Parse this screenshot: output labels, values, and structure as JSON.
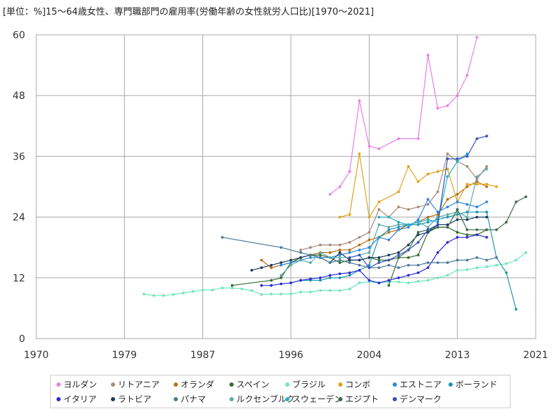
{
  "chart_data": {
    "type": "line",
    "title": "[単位：%]15～64歳女性、専門職部門の雇用率(労働年齢の女性就労人口比)[1970～2021]",
    "xlabel": "",
    "ylabel": "",
    "xlim": [
      1970,
      2021
    ],
    "ylim": [
      0,
      60
    ],
    "xticks": [
      1970,
      1979,
      1987,
      1996,
      2004,
      2013,
      2021
    ],
    "yticks": [
      0,
      12,
      24,
      36,
      48,
      60
    ],
    "grid": true,
    "legend_position": "bottom",
    "series": [
      {
        "name": "ヨルダン",
        "color": "#e87de8",
        "x": [
          2000,
          2001,
          2002,
          2003,
          2004,
          2005,
          2007,
          2009,
          2010,
          2011,
          2012,
          2013,
          2014,
          2015
        ],
        "y": [
          28.5,
          30.0,
          33.0,
          47.0,
          38.0,
          37.5,
          39.5,
          39.5,
          56.0,
          45.5,
          46.0,
          48.0,
          52.0,
          59.5
        ]
      },
      {
        "name": "リトアニア",
        "color": "#a68a7a",
        "x": [
          1997,
          1998,
          1999,
          2000,
          2001,
          2002,
          2003,
          2004,
          2005,
          2006,
          2007,
          2008,
          2009,
          2010,
          2011,
          2012,
          2013,
          2014,
          2015,
          2016
        ],
        "y": [
          17.5,
          18.0,
          18.5,
          18.5,
          18.5,
          19.0,
          20.0,
          21.0,
          25.5,
          24.0,
          26.0,
          25.5,
          26.0,
          26.5,
          29.0,
          36.5,
          35.0,
          34.0,
          31.5,
          34.0
        ]
      },
      {
        "name": "オランダ",
        "color": "#b86e14",
        "x": [
          1993,
          1994,
          1996,
          1997,
          1998,
          1999,
          2000,
          2001,
          2002,
          2003,
          2004,
          2005,
          2006,
          2007,
          2008,
          2009,
          2010,
          2011,
          2012,
          2013,
          2014,
          2015,
          2016
        ],
        "y": [
          15.5,
          14.0,
          15.0,
          16.0,
          16.5,
          17.0,
          17.0,
          17.5,
          17.5,
          18.5,
          19.5,
          20.0,
          21.0,
          21.5,
          22.5,
          23.0,
          24.0,
          24.5,
          27.5,
          28.5,
          30.0,
          31.0,
          30.0
        ]
      },
      {
        "name": "スペイン",
        "color": "#2e6b2e",
        "x": [
          1990,
          1994,
          1995,
          1996,
          1997,
          1998,
          1999,
          2000,
          2001,
          2002,
          2003,
          2004,
          2005,
          2006,
          2007,
          2008,
          2009,
          2010,
          2011,
          2012,
          2013,
          2014,
          2015,
          2016
        ],
        "y": [
          10.5,
          11.5,
          12.0,
          15.0,
          16.0,
          16.5,
          16.5,
          16.0,
          15.0,
          15.5,
          15.5,
          16.0,
          15.5,
          15.5,
          16.0,
          16.0,
          16.5,
          21.0,
          22.0,
          22.0,
          21.0,
          20.5,
          20.5,
          21.5
        ]
      },
      {
        "name": "ブラジル",
        "color": "#6de8b8",
        "x": [
          1981,
          1982,
          1983,
          1984,
          1985,
          1986,
          1987,
          1988,
          1989,
          1990,
          1991,
          1992,
          1993,
          1994,
          1995,
          1996,
          1997,
          1998,
          1999,
          2000,
          2001,
          2002,
          2003,
          2004,
          2005,
          2006,
          2007,
          2008,
          2009,
          2010,
          2011,
          2012,
          2013,
          2014,
          2015,
          2016,
          2017,
          2018,
          2019,
          2020
        ],
        "y": [
          8.8,
          8.5,
          8.5,
          8.7,
          9.0,
          9.3,
          9.6,
          9.6,
          10.0,
          10.0,
          9.8,
          9.5,
          8.7,
          8.8,
          8.8,
          8.8,
          9.2,
          9.2,
          9.5,
          9.5,
          9.5,
          9.8,
          11.0,
          11.2,
          11.0,
          11.2,
          11.2,
          11.0,
          11.3,
          11.5,
          12.0,
          12.5,
          13.5,
          13.6,
          14.0,
          14.2,
          14.5,
          14.8,
          15.5,
          17.0
        ]
      },
      {
        "name": "コンボ",
        "color": "#e0a418",
        "x": [
          2001,
          2002,
          2003,
          2004,
          2005,
          2007,
          2008,
          2009,
          2010,
          2011,
          2012,
          2013,
          2014,
          2015,
          2016,
          2017
        ],
        "y": [
          24.0,
          24.5,
          36.5,
          24.0,
          27.0,
          29.0,
          34.0,
          31.0,
          32.5,
          33.0,
          33.5,
          27.0,
          30.5,
          30.5,
          30.5,
          30.0
        ]
      },
      {
        "name": "エストニア",
        "color": "#2e86e0",
        "x": [
          1995,
          1996,
          1997,
          1998,
          1999,
          2000,
          2001,
          2002,
          2003,
          2004,
          2005,
          2006,
          2007,
          2008,
          2009,
          2010,
          2011,
          2012,
          2013,
          2014,
          2015,
          2016
        ],
        "y": [
          14.5,
          15.0,
          15.5,
          16.0,
          16.0,
          16.0,
          16.5,
          17.0,
          17.5,
          18.0,
          20.0,
          19.5,
          21.5,
          22.0,
          23.5,
          27.5,
          25.0,
          26.0,
          27.0,
          26.5,
          26.0,
          27.0
        ]
      },
      {
        "name": "ボーランド",
        "color": "#1a96b0",
        "x": [
          1997,
          1998,
          1999,
          2000,
          2001,
          2002,
          2003,
          2004,
          2005,
          2006,
          2007,
          2008,
          2009,
          2010,
          2011,
          2012,
          2013,
          2014,
          2015,
          2016,
          2017,
          2018,
          2019
        ],
        "y": [
          11.5,
          11.5,
          11.5,
          12.0,
          12.0,
          12.5,
          13.5,
          14.5,
          20.0,
          21.5,
          22.0,
          22.5,
          22.5,
          23.0,
          23.5,
          24.0,
          24.5,
          25.0,
          25.0,
          25.0,
          16.0,
          13.0,
          5.8
        ]
      },
      {
        "name": "イタリア",
        "color": "#2a2ad8",
        "x": [
          1993,
          1994,
          1995,
          1996,
          1997,
          1998,
          1999,
          2000,
          2001,
          2002,
          2003,
          2004,
          2005,
          2006,
          2007,
          2008,
          2009,
          2010,
          2011,
          2012,
          2013,
          2014,
          2015,
          2016
        ],
        "y": [
          10.5,
          10.5,
          10.8,
          11.0,
          11.5,
          11.8,
          12.0,
          12.5,
          12.8,
          13.0,
          13.5,
          11.5,
          11.0,
          11.5,
          12.0,
          12.5,
          13.0,
          14.0,
          17.0,
          19.0,
          20.0,
          20.0,
          20.5,
          20.0
        ]
      },
      {
        "name": "ラトビア",
        "color": "#1a3a5a",
        "x": [
          1992,
          1993,
          1994,
          1995,
          1996,
          1997,
          1998,
          1999,
          2000,
          2001,
          2002,
          2003,
          2004,
          2005,
          2006,
          2007,
          2008,
          2009,
          2010,
          2011,
          2012,
          2013,
          2014,
          2015,
          2016
        ],
        "y": [
          13.5,
          14.0,
          14.5,
          15.0,
          15.5,
          16.0,
          16.5,
          16.0,
          15.0,
          17.0,
          15.5,
          15.5,
          16.0,
          16.0,
          16.5,
          17.0,
          18.5,
          20.5,
          21.0,
          22.5,
          22.5,
          23.5,
          23.5,
          24.0,
          24.0
        ]
      },
      {
        "name": "パナマ",
        "color": "#4a7a9a",
        "x": [
          1989,
          1995,
          1997,
          1998,
          1999,
          2000,
          2001,
          2002,
          2003,
          2004,
          2005,
          2006,
          2007,
          2008,
          2009,
          2010,
          2011,
          2012,
          2013,
          2014,
          2015,
          2016,
          2017
        ],
        "y": [
          20.0,
          18.0,
          17.0,
          16.5,
          16.0,
          15.0,
          15.5,
          15.0,
          14.5,
          14.0,
          14.0,
          14.5,
          14.0,
          14.5,
          14.5,
          15.0,
          15.0,
          15.0,
          15.5,
          15.5,
          16.0,
          15.5,
          16.0
        ]
      },
      {
        "name": "ルクセンブルク",
        "color": "#5aaaa8",
        "x": [
          1995,
          1996,
          1997,
          1998,
          1999,
          2000,
          2001,
          2002,
          2003,
          2004,
          2005,
          2006,
          2007,
          2008,
          2009,
          2010,
          2011,
          2012,
          2013,
          2014,
          2015,
          2016
        ],
        "y": [
          12.5,
          14.5,
          15.5,
          15.0,
          17.0,
          16.0,
          16.0,
          16.0,
          16.5,
          17.0,
          22.5,
          22.0,
          22.5,
          22.5,
          23.0,
          22.0,
          24.0,
          24.5,
          25.0,
          24.0,
          32.0,
          33.5
        ]
      },
      {
        "name": "スウェーデン",
        "color": "#22b0c8",
        "x": [
          2005,
          2006,
          2007,
          2008,
          2009,
          2010,
          2011,
          2012,
          2013,
          2014
        ],
        "y": [
          24.0,
          24.0,
          23.0,
          22.5,
          23.0,
          23.5,
          23.0,
          32.0,
          35.0,
          36.5
        ]
      },
      {
        "name": "エジプト",
        "color": "#3a6a4a",
        "x": [
          2006,
          2007,
          2008,
          2009,
          2010,
          2011,
          2012,
          2013,
          2014,
          2015,
          2016,
          2017,
          2018,
          2019,
          2020
        ],
        "y": [
          10.5,
          16.0,
          17.5,
          21.0,
          21.5,
          22.0,
          22.0,
          25.5,
          21.5,
          21.5,
          21.5,
          21.5,
          23.0,
          27.0,
          28.0
        ]
      },
      {
        "name": "デンマーク",
        "color": "#3050c0",
        "x": [
          2002,
          2003,
          2004,
          2005,
          2006,
          2007,
          2008,
          2009,
          2010,
          2011,
          2012,
          2013,
          2014,
          2015,
          2016
        ],
        "y": [
          16.0,
          16.5,
          14.0,
          15.0,
          15.5,
          16.5,
          17.5,
          19.0,
          21.5,
          22.5,
          35.5,
          35.5,
          36.0,
          39.5,
          40.0
        ]
      }
    ]
  }
}
